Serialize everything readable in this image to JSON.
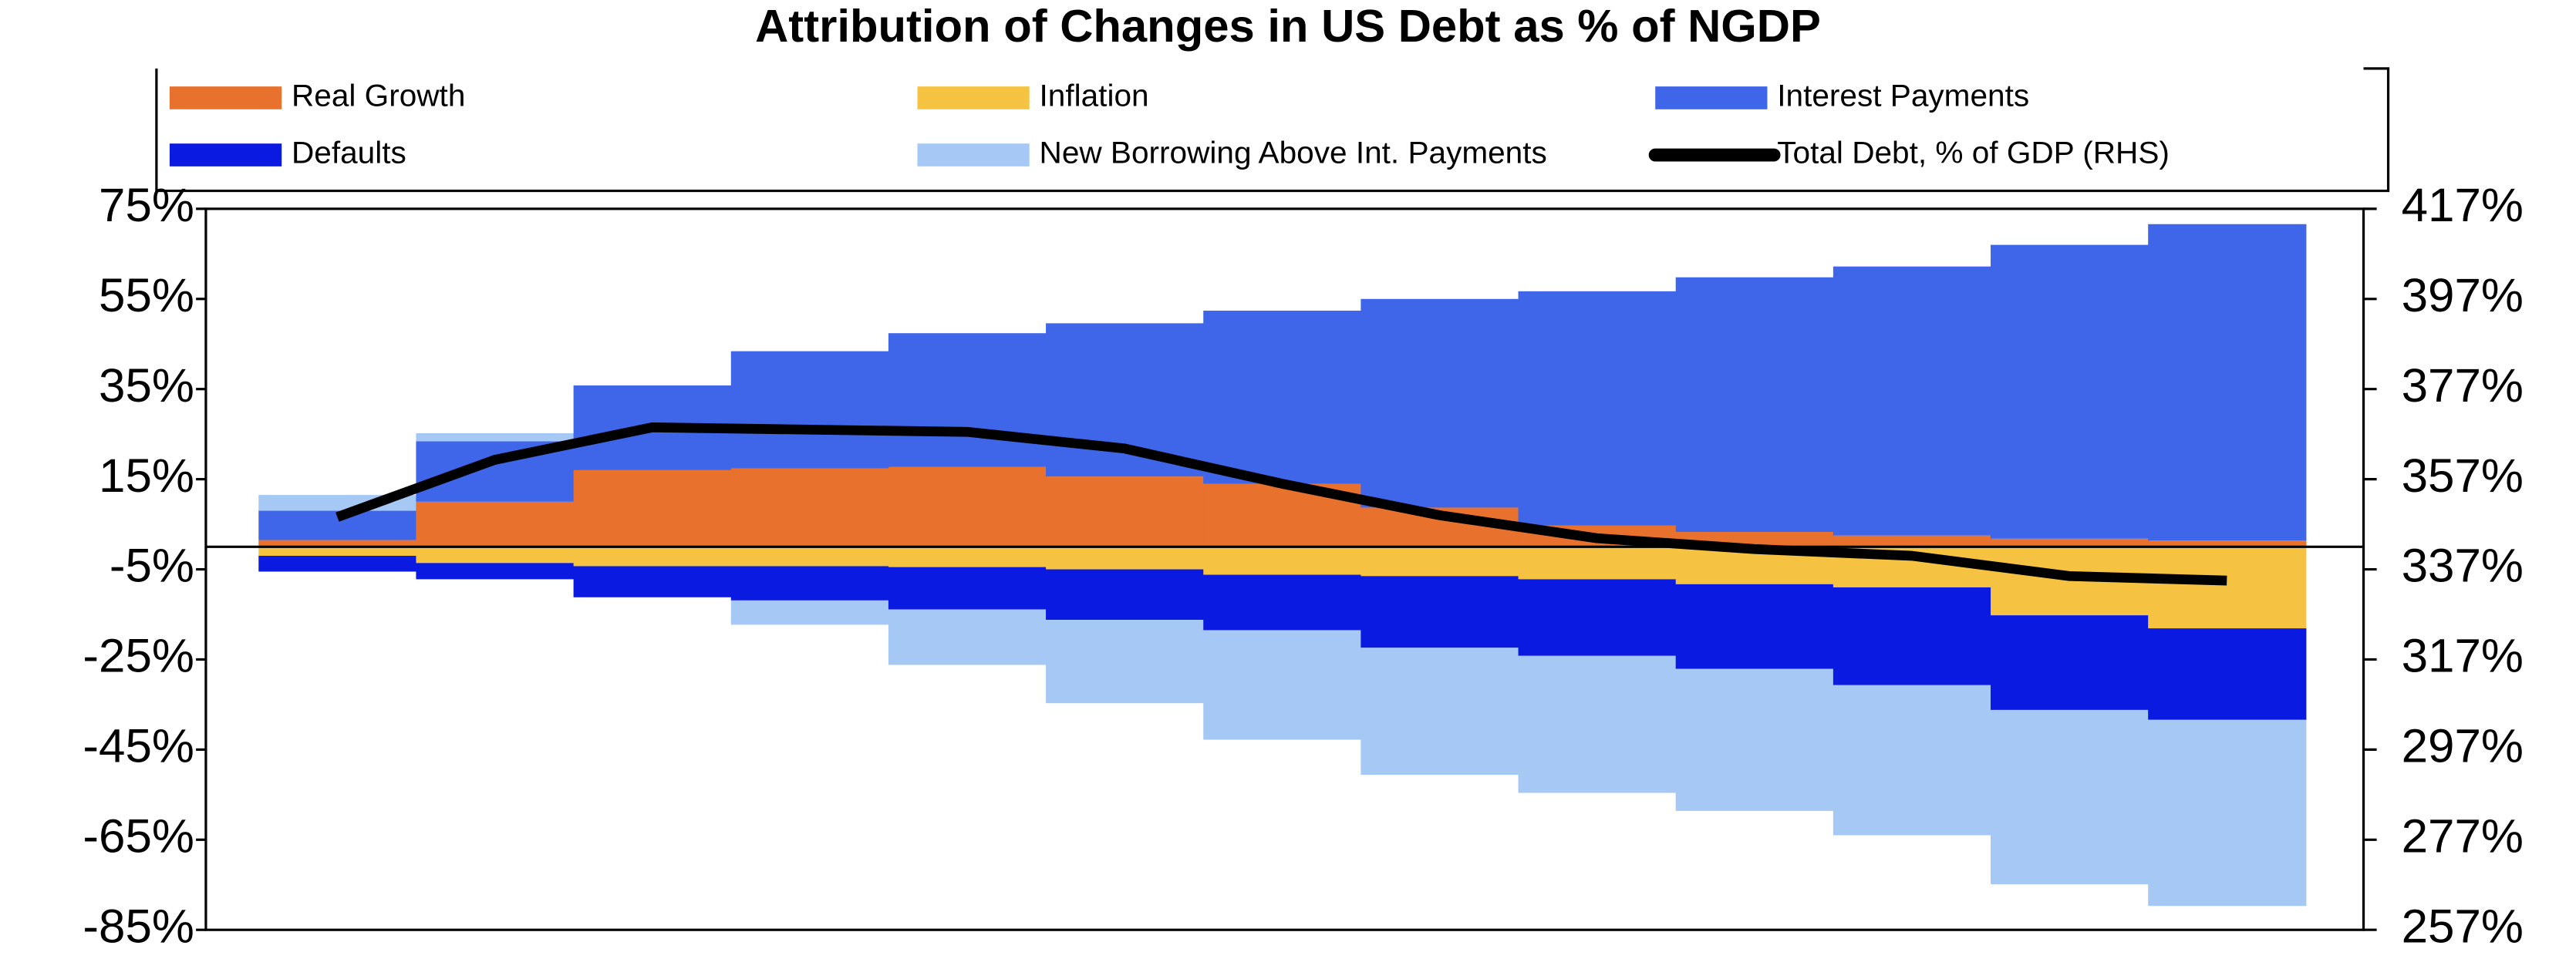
{
  "chart_data": {
    "type": "stacked-step-area",
    "title": "Attribution of Changes in US Debt as % of NGDP",
    "categories": [
      null,
      null,
      null,
      null,
      null,
      null,
      null,
      null,
      null,
      null,
      null,
      null,
      null
    ],
    "series": [
      {
        "name": "Real Growth",
        "color": "#e8712d",
        "values": [
          1.5,
          10,
          17,
          17.4,
          17.7,
          15.6,
          14,
          8.7,
          4.7,
          3.3,
          2.5,
          1.8,
          1.4
        ]
      },
      {
        "name": "Inflation",
        "color": "#f5c242",
        "values": [
          -2,
          -3.6,
          -4.3,
          -4.3,
          -4.5,
          -5,
          -6.2,
          -6.5,
          -7.2,
          -8.3,
          -9,
          -15.2,
          -18.1
        ]
      },
      {
        "name": "Interest Payments",
        "color": "#3f66e8",
        "values": [
          6.5,
          13.4,
          18.8,
          26,
          29.7,
          34,
          38.4,
          46.3,
          52,
          56.5,
          59.7,
          65.2,
          70.2
        ]
      },
      {
        "name": "Defaults",
        "color": "#0a1ae0",
        "values": [
          -3.5,
          -3.6,
          -6.9,
          -7.6,
          -9.4,
          -11.2,
          -12.3,
          -15.9,
          -17,
          -18.8,
          -21.7,
          -21,
          -20.3
        ]
      },
      {
        "name": "New Borrowing Above Int. Payments",
        "color": "#a6c8f5",
        "values": [
          3.5,
          1.8,
          0,
          -5.4,
          -12.3,
          -18.5,
          -24.3,
          -28.2,
          -30.4,
          -31.5,
          -33.3,
          -38.7,
          -41.3
        ]
      },
      {
        "name": "Total Debt, % of GDP (RHS)",
        "color": "#000000",
        "axis": "y2",
        "values": [
          348.6,
          361.3,
          368.5,
          368,
          367.5,
          363.8,
          356,
          349,
          343.9,
          341.5,
          340,
          335.5,
          334.5
        ]
      }
    ],
    "ylim": [
      -85,
      75
    ],
    "yticks": [
      {
        "value": 75,
        "label": "75%"
      },
      {
        "value": 55,
        "label": "55%"
      },
      {
        "value": 35,
        "label": "35%"
      },
      {
        "value": 15,
        "label": "15%"
      },
      {
        "value": -5,
        "label": "-5%"
      },
      {
        "value": -25,
        "label": "-25%"
      },
      {
        "value": -45,
        "label": "-45%"
      },
      {
        "value": -65,
        "label": "-65%"
      },
      {
        "value": -85,
        "label": "-85%"
      }
    ],
    "y2lim": [
      257,
      417
    ],
    "y2ticks": [
      {
        "value": 417,
        "label": "417%"
      },
      {
        "value": 397,
        "label": "397%"
      },
      {
        "value": 377,
        "label": "377%"
      },
      {
        "value": 357,
        "label": "357%"
      },
      {
        "value": 337,
        "label": "337%"
      },
      {
        "value": 317,
        "label": "317%"
      },
      {
        "value": 297,
        "label": "297%"
      },
      {
        "value": 277,
        "label": "277%"
      },
      {
        "value": 257,
        "label": "257%"
      }
    ]
  }
}
